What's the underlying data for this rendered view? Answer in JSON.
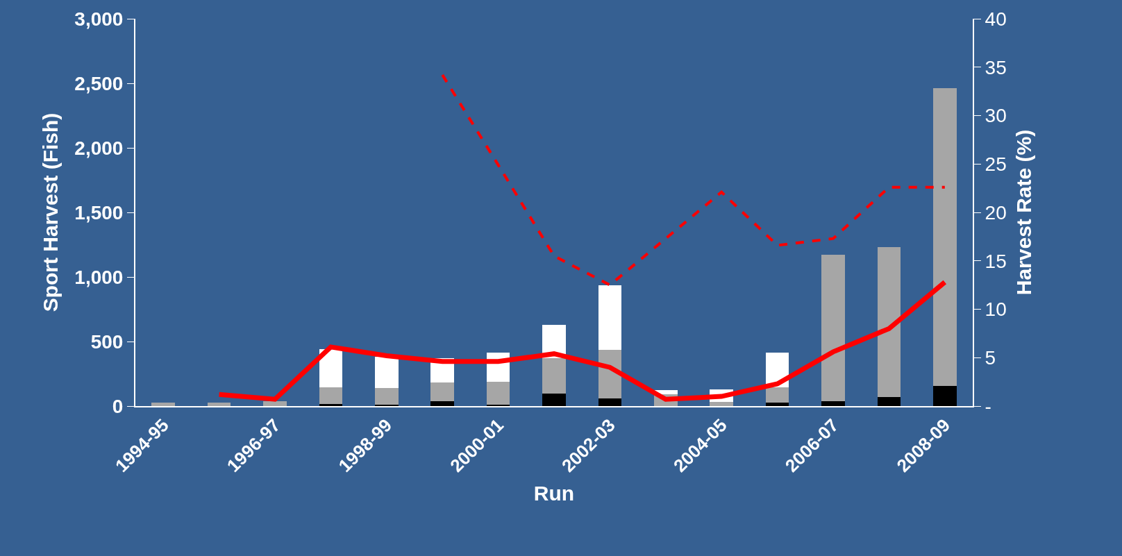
{
  "chart_data": {
    "type": "bar",
    "xlabel": "Run",
    "ylabel": "Sport Harvest (Fish)",
    "y2label": "Harvest Rate (%)",
    "categories": [
      "1994-95",
      null,
      "1996-97",
      null,
      "1998-99",
      null,
      "2000-01",
      null,
      "2002-03",
      null,
      "2004-05",
      null,
      "2006-07",
      null,
      "2008-09"
    ],
    "stacked": true,
    "grid": false,
    "ylim": [
      0,
      3000
    ],
    "yticks": [
      0,
      {
        "value": 500,
        "label": "500"
      },
      {
        "value": 1000,
        "label": "1,000"
      },
      {
        "value": 1500,
        "label": "1,500"
      },
      {
        "value": 2000,
        "label": "2,000"
      },
      {
        "value": 2500,
        "label": "2,500"
      },
      {
        "value": 3000,
        "label": "3,000"
      }
    ],
    "y2lim": [
      0,
      40
    ],
    "y2ticks": [
      {
        "value": 0,
        "label": "-"
      },
      5,
      10,
      15,
      20,
      25,
      30,
      35,
      40
    ],
    "series": [
      {
        "color": "#000000",
        "values": [
          0,
          0,
          0,
          15,
          10,
          38,
          10,
          98,
          60,
          0,
          0,
          25,
          40,
          70,
          155
        ]
      },
      {
        "color": "#a6a6a6",
        "values": [
          25,
          25,
          40,
          130,
          130,
          145,
          178,
          272,
          375,
          90,
          32,
          120,
          1133,
          1159,
          2308
        ]
      },
      {
        "color": "#ffffff",
        "values": [
          0,
          0,
          0,
          295,
          240,
          187,
          225,
          261,
          500,
          31,
          97,
          268,
          0,
          0,
          0
        ]
      },
      {
        "type": "line",
        "axis": "y2",
        "color": "#ff0000",
        "line_style": "solid",
        "values": [
          null,
          1.2,
          0.7,
          6.1,
          5.2,
          4.6,
          4.6,
          5.4,
          4.0,
          0.7,
          1.0,
          2.3,
          5.6,
          8.0,
          12.8
        ]
      },
      {
        "type": "line",
        "axis": "y2",
        "color": "#ff0000",
        "line_style": "dashed",
        "values": [
          null,
          null,
          null,
          null,
          null,
          34.2,
          24.9,
          15.5,
          12.5,
          17.3,
          22.1,
          16.6,
          17.3,
          22.6,
          22.6
        ]
      }
    ]
  }
}
